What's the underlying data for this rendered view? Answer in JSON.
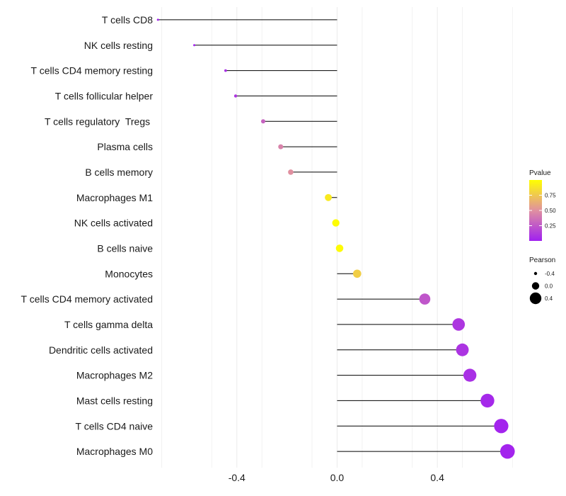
{
  "chart_data": {
    "type": "lollipop",
    "title": "",
    "xlabel": "",
    "ylabel": "",
    "xlim": [
      -0.71,
      0.73
    ],
    "x_ticks": [
      -0.4,
      0.0,
      0.4
    ],
    "x_tick_labels": [
      "-0.4",
      "0.0",
      "0.4"
    ],
    "grid": true,
    "baseline": 0.0,
    "categories": [
      "T cells CD8",
      "NK cells resting",
      "T cells CD4 memory resting",
      "T cells follicular helper",
      "T cells regulatory  Tregs ",
      "Plasma cells",
      "B cells memory",
      "Macrophages M1",
      "NK cells activated",
      "B cells naive",
      "Monocytes",
      "T cells CD4 memory activated",
      "T cells gamma delta",
      "Dendritic cells activated",
      "Macrophages M2",
      "Mast cells resting",
      "T cells CD4 naive",
      "Macrophages M0"
    ],
    "pearson": [
      -0.715,
      -0.57,
      -0.445,
      -0.405,
      -0.295,
      -0.225,
      -0.185,
      -0.035,
      -0.005,
      0.01,
      0.08,
      0.35,
      0.485,
      0.5,
      0.53,
      0.6,
      0.655,
      0.68
    ],
    "pvalue": [
      0.01,
      0.02,
      0.07,
      0.1,
      0.3,
      0.44,
      0.5,
      0.9,
      0.99,
      0.98,
      0.78,
      0.24,
      0.1,
      0.09,
      0.07,
      0.04,
      0.02,
      0.02
    ],
    "color_legend": {
      "title": "Pvalue",
      "ticks": [
        0.75,
        0.5,
        0.25
      ],
      "tick_labels": [
        "0.75",
        "0.50",
        "0.25"
      ],
      "range": [
        0.0,
        1.0
      ],
      "color_low": "#a020f0",
      "color_mid": "#e090a0",
      "color_high": "#ffff00"
    },
    "size_legend": {
      "title": "Pearson",
      "values": [
        -0.4,
        0.0,
        0.4
      ],
      "labels": [
        "-0.4",
        "0.0",
        "0.4"
      ]
    },
    "legend_position": "right"
  }
}
